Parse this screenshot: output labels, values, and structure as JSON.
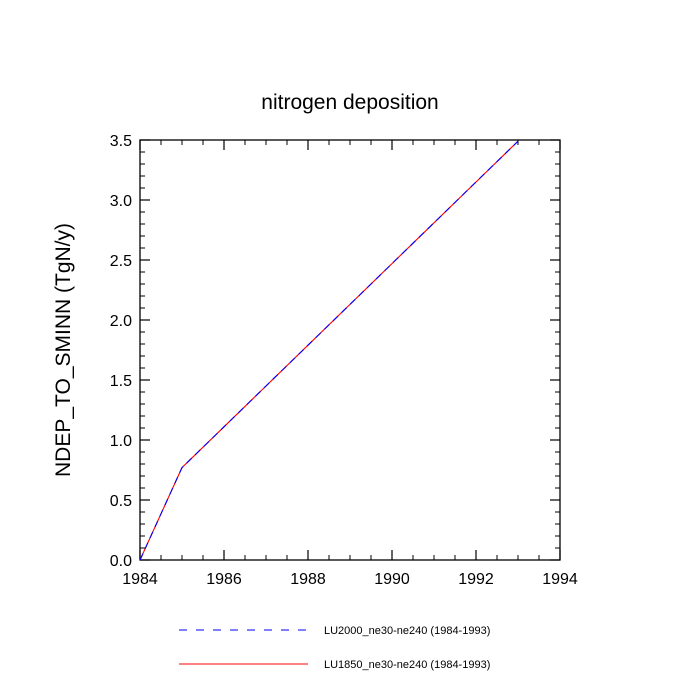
{
  "chart_data": {
    "type": "line",
    "title": "nitrogen deposition",
    "xlabel": "",
    "ylabel": "NDEP_TO_SMINN  (TgN/y)",
    "xlim": [
      1984,
      1994
    ],
    "ylim": [
      0,
      3.5
    ],
    "x_ticks": [
      "1984",
      "1986",
      "1988",
      "1990",
      "1992",
      "1994"
    ],
    "y_ticks": [
      "0.0",
      "0.5",
      "1.0",
      "1.5",
      "2.0",
      "2.5",
      "3.0",
      "3.5"
    ],
    "x": [
      1984,
      1985,
      1986,
      1987,
      1988,
      1989,
      1990,
      1991,
      1992,
      1993
    ],
    "grid": false,
    "legend_position": "bottom",
    "series": [
      {
        "name": "LU2000_ne30-ne240 (1984-1993)",
        "color": "#0000ff",
        "style": "dashed",
        "values": [
          0.0,
          0.77,
          1.11,
          1.45,
          1.79,
          2.13,
          2.47,
          2.81,
          3.15,
          3.49
        ]
      },
      {
        "name": "LU1850_ne30-ne240 (1984-1993)",
        "color": "#ff0000",
        "style": "solid",
        "values": [
          0.0,
          0.77,
          1.11,
          1.45,
          1.79,
          2.13,
          2.47,
          2.81,
          3.15,
          3.49
        ]
      }
    ]
  }
}
